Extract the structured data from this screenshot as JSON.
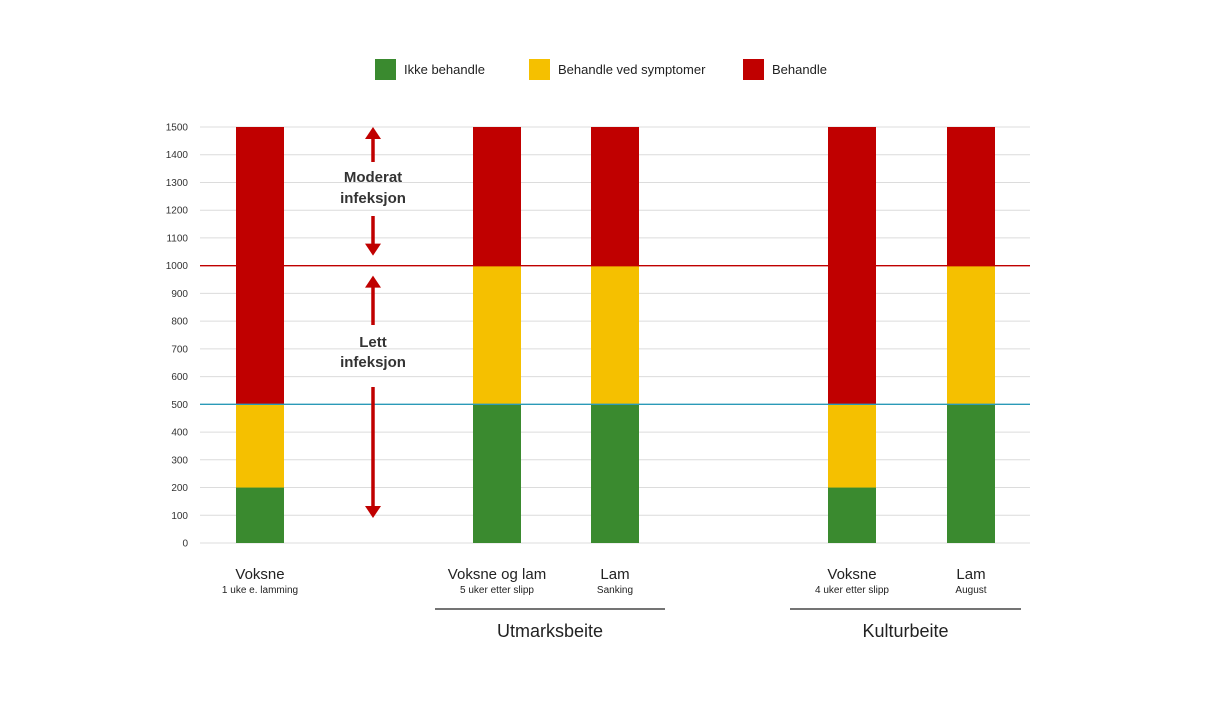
{
  "legend": [
    {
      "label": "Ikke behandle",
      "color": "#3a8a2f"
    },
    {
      "label": "Behandle ved symptomer",
      "color": "#f5c000"
    },
    {
      "label": "Behandle",
      "color": "#c00000"
    }
  ],
  "chart_data": {
    "type": "bar",
    "stacked": true,
    "ylim": [
      0,
      1500
    ],
    "yticks": [
      0,
      100,
      200,
      300,
      400,
      500,
      600,
      700,
      800,
      900,
      1000,
      1100,
      1200,
      1300,
      1400,
      1500
    ],
    "grid": true,
    "legend_position": "top",
    "categories": [
      {
        "label": "Voksne",
        "sublabel": "1 uke e. lamming"
      },
      {
        "label": "Voksne og lam",
        "sublabel": "5 uker etter slipp"
      },
      {
        "label": "Lam",
        "sublabel": "Sanking"
      },
      {
        "label": "Voksne",
        "sublabel": "4 uker etter slipp"
      },
      {
        "label": "Lam",
        "sublabel": "August"
      }
    ],
    "series": [
      {
        "name": "Ikke behandle",
        "color": "#3a8a2f",
        "values": [
          200,
          500,
          500,
          200,
          500
        ]
      },
      {
        "name": "Behandle ved symptomer",
        "color": "#f5c000",
        "values": [
          300,
          500,
          500,
          300,
          500
        ]
      },
      {
        "name": "Behandle",
        "color": "#c00000",
        "values": [
          1000,
          500,
          500,
          1000,
          500
        ]
      }
    ],
    "reference_lines": [
      {
        "value": 500,
        "color": "#2a9ab8"
      },
      {
        "value": 1000,
        "color": "#c00000"
      }
    ],
    "groups": [
      {
        "label": "Utmarksbeite",
        "categories": [
          1,
          2
        ]
      },
      {
        "label": "Kulturbeite",
        "categories": [
          3,
          4
        ]
      }
    ],
    "annotations": [
      {
        "text_lines": [
          "Moderat",
          "infeksjon"
        ],
        "from": 1000,
        "to": 1500
      },
      {
        "text_lines": [
          "Lett",
          "infeksjon"
        ],
        "from": 0,
        "to": 1000
      }
    ],
    "arrow_color": "#c00000"
  }
}
